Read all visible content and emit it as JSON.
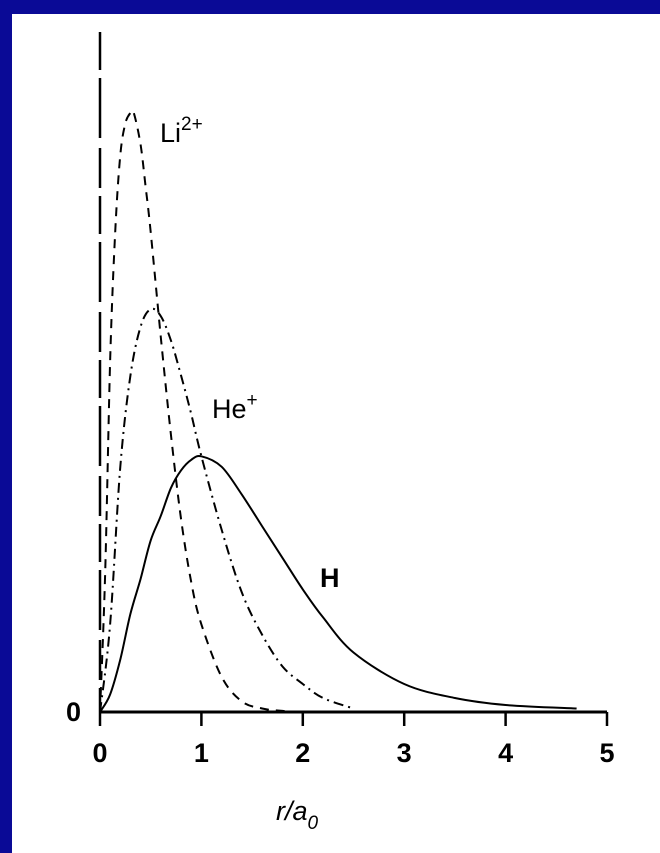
{
  "background_color": "#0a0a96",
  "panel_color": "#ffffff",
  "chart_data": {
    "type": "line",
    "title": "",
    "xlabel": "r/a",
    "xlabel_subscript": "0",
    "ylabel": "",
    "xlim": [
      0,
      5
    ],
    "ylim": [
      0,
      1.85
    ],
    "x_ticks": [
      "0",
      "1",
      "2",
      "3",
      "4",
      "5"
    ],
    "y_tick_label": "0",
    "grid": false,
    "legend": "none",
    "series": [
      {
        "name": "Li",
        "superscript": "2+",
        "style": "dashed",
        "color": "#000000",
        "x": [
          0,
          0.05,
          0.1,
          0.15,
          0.2,
          0.25,
          0.3,
          0.333,
          0.4,
          0.45,
          0.5,
          0.6,
          0.7,
          0.8,
          0.9,
          1.0,
          1.2,
          1.4,
          1.6,
          1.8,
          2.0
        ],
        "y": [
          0,
          0.39,
          1.0,
          1.37,
          1.59,
          1.68,
          1.71,
          1.71,
          1.62,
          1.5,
          1.37,
          1.07,
          0.79,
          0.55,
          0.37,
          0.25,
          0.1,
          0.03,
          0.01,
          0.003,
          0
        ]
      },
      {
        "name": "He",
        "superscript": "+",
        "style": "dashdot",
        "color": "#000000",
        "x": [
          0,
          0.1,
          0.2,
          0.3,
          0.4,
          0.5,
          0.6,
          0.7,
          0.8,
          0.9,
          1.0,
          1.2,
          1.4,
          1.6,
          1.8,
          2.0,
          2.2,
          2.5
        ],
        "y": [
          0,
          0.25,
          0.7,
          0.96,
          1.1,
          1.15,
          1.13,
          1.06,
          0.96,
          0.85,
          0.73,
          0.52,
          0.34,
          0.22,
          0.13,
          0.08,
          0.04,
          0.01
        ]
      },
      {
        "name": "H",
        "superscript": "",
        "style": "solid",
        "color": "#000000",
        "x": [
          0,
          0.1,
          0.2,
          0.3,
          0.4,
          0.5,
          0.6,
          0.7,
          0.8,
          0.9,
          1.0,
          1.2,
          1.4,
          1.6,
          1.8,
          2.0,
          2.2,
          2.5,
          3.0,
          3.5,
          4.0,
          4.7
        ],
        "y": [
          0,
          0.05,
          0.15,
          0.28,
          0.38,
          0.49,
          0.56,
          0.64,
          0.69,
          0.72,
          0.73,
          0.7,
          0.62,
          0.53,
          0.44,
          0.35,
          0.27,
          0.17,
          0.08,
          0.04,
          0.02,
          0.01
        ]
      }
    ]
  }
}
